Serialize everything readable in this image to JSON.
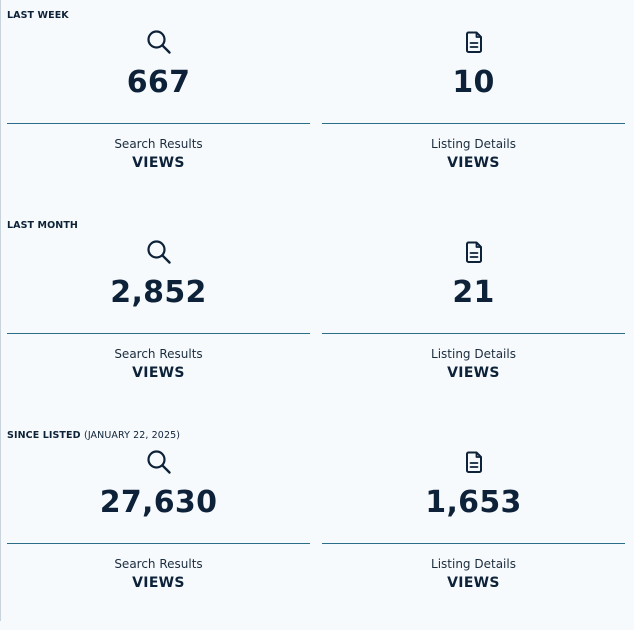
{
  "sections": [
    {
      "heading": "LAST WEEK",
      "subheading": "",
      "search": {
        "icon": "search-icon",
        "value": "667",
        "label": "Search Results",
        "kind": "VIEWS"
      },
      "details": {
        "icon": "document-icon",
        "value": "10",
        "label": "Listing Details",
        "kind": "VIEWS"
      }
    },
    {
      "heading": "LAST MONTH",
      "subheading": "",
      "search": {
        "icon": "search-icon",
        "value": "2,852",
        "label": "Search Results",
        "kind": "VIEWS"
      },
      "details": {
        "icon": "document-icon",
        "value": "21",
        "label": "Listing Details",
        "kind": "VIEWS"
      }
    },
    {
      "heading": "SINCE LISTED",
      "subheading": "(JANUARY 22, 2025)",
      "search": {
        "icon": "search-icon",
        "value": "27,630",
        "label": "Search Results",
        "kind": "VIEWS"
      },
      "details": {
        "icon": "document-icon",
        "value": "1,653",
        "label": "Listing Details",
        "kind": "VIEWS"
      }
    }
  ],
  "colors": {
    "background": "#f7fafd",
    "text": "#0d2238",
    "divider": "#2a6e88"
  }
}
